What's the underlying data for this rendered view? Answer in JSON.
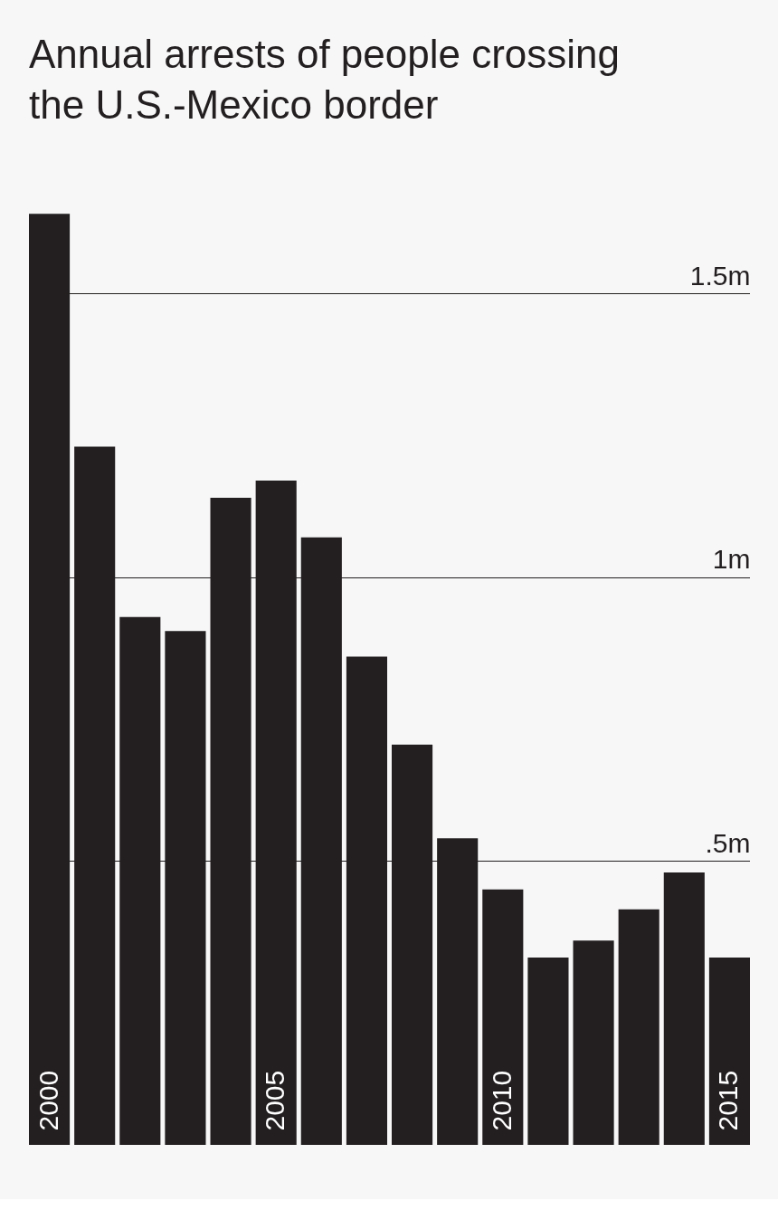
{
  "chart_data": {
    "type": "bar",
    "title": "Annual arrests of people crossing the U.S.-Mexico border",
    "categories": [
      "2000",
      null,
      null,
      null,
      null,
      "2005",
      null,
      null,
      null,
      null,
      "2010",
      null,
      null,
      null,
      null,
      "2015"
    ],
    "values": [
      1.64,
      1.23,
      0.93,
      0.905,
      1.14,
      1.17,
      1.07,
      0.86,
      0.705,
      0.54,
      0.45,
      0.33,
      0.36,
      0.415,
      0.48,
      0.33
    ],
    "color": "#231f20",
    "ylim": [
      0,
      1.65
    ],
    "yticks": [
      {
        "value": 0.5,
        "label": ".5m"
      },
      {
        "value": 1,
        "label": "1m"
      },
      {
        "value": 1.5,
        "label": "1.5m"
      }
    ],
    "grid": "y"
  }
}
